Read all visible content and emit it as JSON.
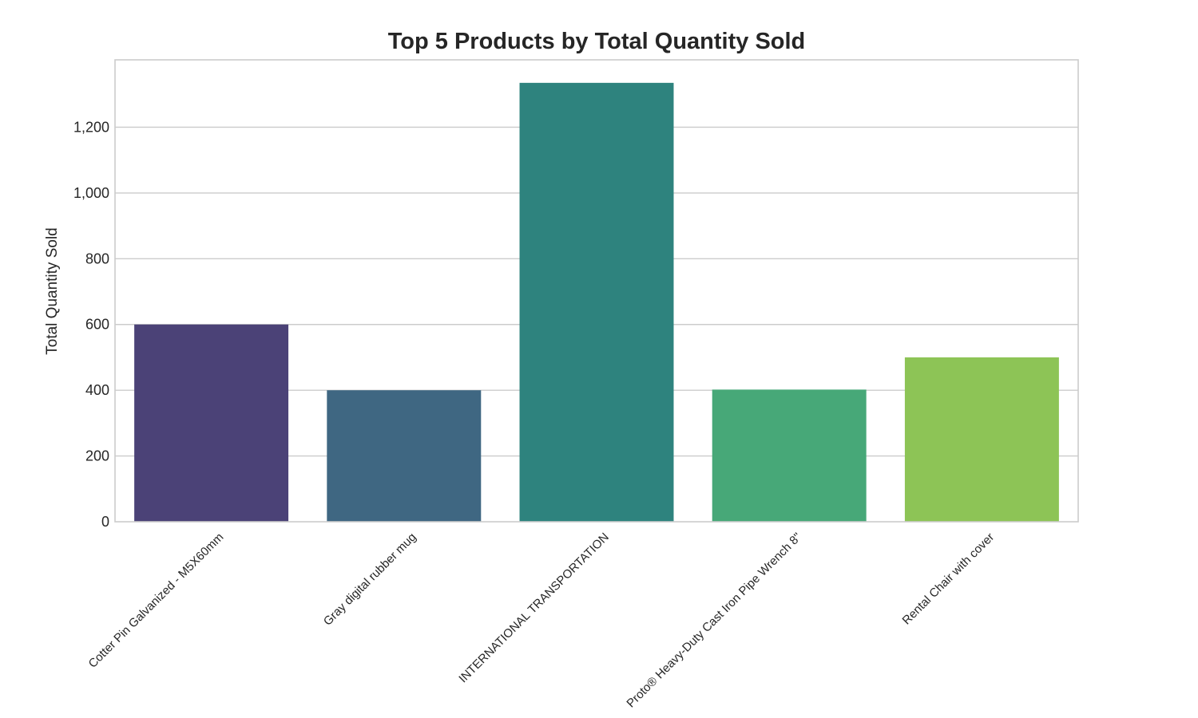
{
  "chart_data": {
    "type": "bar",
    "title": "Top 5 Products by Total Quantity Sold",
    "xlabel": "",
    "ylabel": "Total Quantity Sold",
    "categories": [
      "Cotter Pin Galvanized - M5X60mm",
      "Gray digital rubber mug",
      "INTERNATIONAL TRANSPORTATION",
      "Proto® Heavy-Duty Cast Iron Pipe Wrench 8\"",
      "Rental Chair with cover"
    ],
    "values": [
      600,
      400,
      1335,
      402,
      500
    ],
    "colors": [
      "#4b4277",
      "#3f6782",
      "#2e837e",
      "#47a878",
      "#8dc456"
    ],
    "ylim": [
      0,
      1405
    ],
    "yticks": [
      0,
      200,
      400,
      600,
      800,
      1000,
      1200
    ],
    "ytick_labels": [
      "0",
      "200",
      "400",
      "600",
      "800",
      "1,000",
      "1,200"
    ],
    "grid": true,
    "legend": "none"
  }
}
